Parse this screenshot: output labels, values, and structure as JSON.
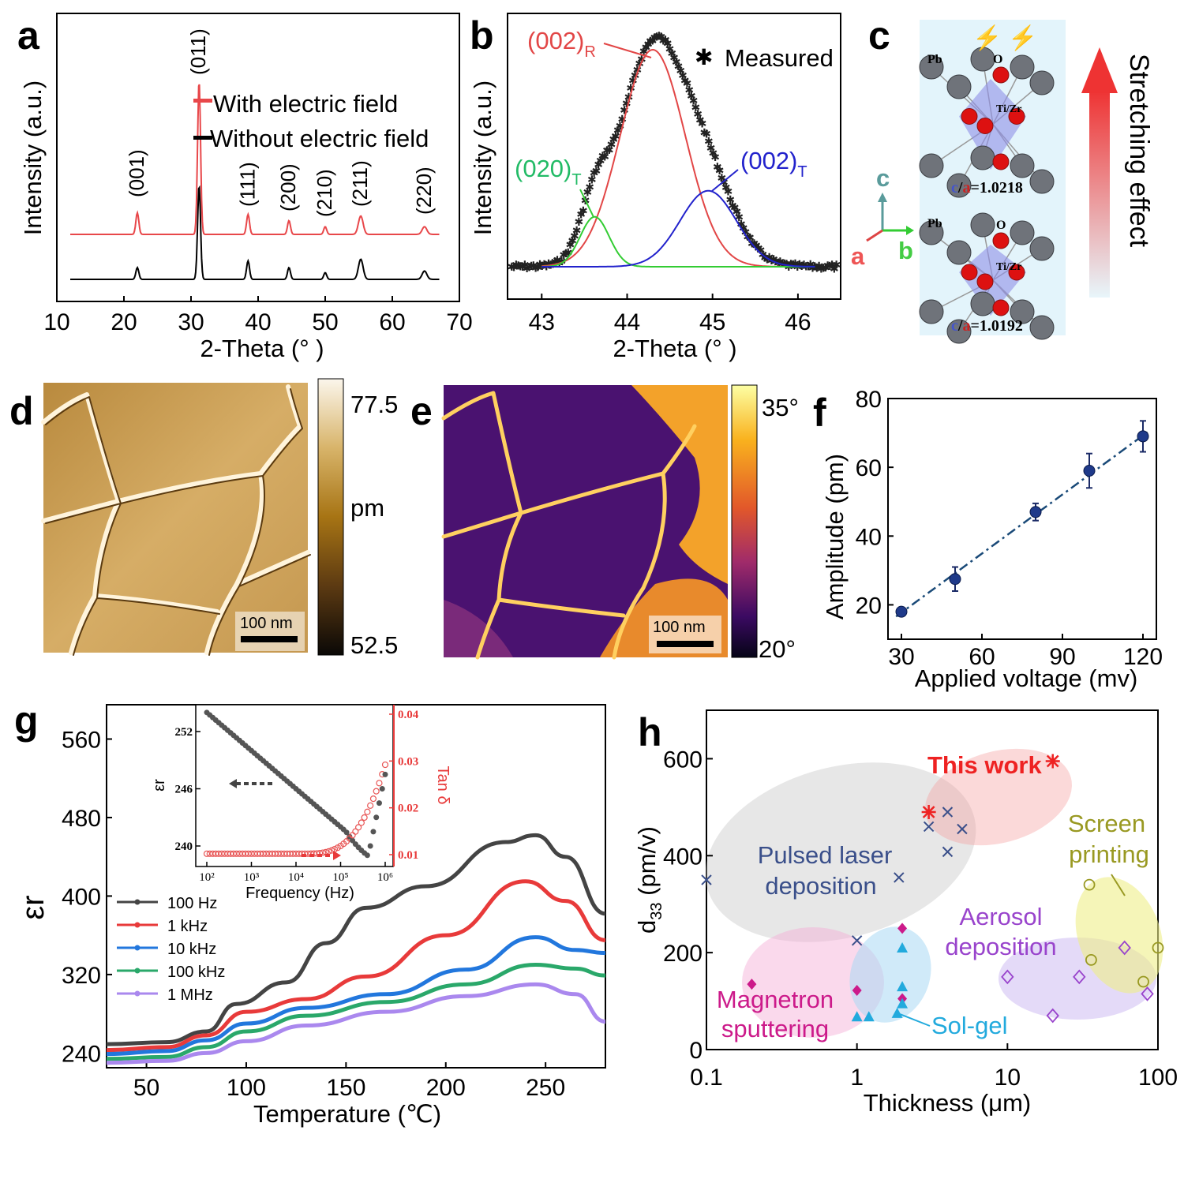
{
  "chart_data": [
    {
      "panel": "a",
      "type": "line",
      "xlabel": "2-Theta (°  )",
      "ylabel": "Intensity (a.u.)",
      "xlim": [
        10,
        70
      ],
      "xticks": [
        "10",
        "20",
        "30",
        "40",
        "50",
        "60",
        "70"
      ],
      "peaks": [
        {
          "label": "(001)",
          "x": 22.0,
          "h_with": 0.14,
          "h_without": 0.07
        },
        {
          "label": "(011)",
          "x": 31.2,
          "h_with": 1.0,
          "h_without": 0.56
        },
        {
          "label": "(111)",
          "x": 38.5,
          "h_with": 0.13,
          "h_without": 0.11
        },
        {
          "label": "(200)",
          "x": 44.6,
          "h_with": 0.09,
          "h_without": 0.07
        },
        {
          "label": "(210)",
          "x": 50.0,
          "h_with": 0.05,
          "h_without": 0.04
        },
        {
          "label": "(211)",
          "x": 55.3,
          "h_with": 0.12,
          "h_without": 0.12
        },
        {
          "label": "(220)",
          "x": 64.8,
          "h_with": 0.05,
          "h_without": 0.05
        }
      ],
      "series": [
        {
          "name": "With electric field",
          "color": "#e8474a"
        },
        {
          "name": "Without electric field",
          "color": "#000000"
        }
      ]
    },
    {
      "panel": "b",
      "type": "line",
      "xlabel": "2-Theta (°  )",
      "ylabel": "Intensity (a.u.)",
      "xlim": [
        42.6,
        46.5
      ],
      "xticks": [
        "43",
        "44",
        "45",
        "46"
      ],
      "legend": "Measured",
      "components": [
        {
          "name": "(002)",
          "sub": "R",
          "center": 44.3,
          "sigma": 0.38,
          "amp": 1.0,
          "color": "#e24646"
        },
        {
          "name": "(020)",
          "sub": "T",
          "center": 43.62,
          "sigma": 0.17,
          "amp": 0.23,
          "color": "#33cc33"
        },
        {
          "name": "(002)",
          "sub": "T",
          "center": 44.95,
          "sigma": 0.33,
          "amp": 0.35,
          "color": "#2222cc"
        }
      ]
    },
    {
      "panel": "f",
      "type": "scatter",
      "xlabel": "Applied voltage (mv)",
      "ylabel": "Amplitude (pm)",
      "xlim": [
        25,
        125
      ],
      "ylim": [
        10,
        80
      ],
      "xticks": [
        "30",
        "60",
        "90",
        "120"
      ],
      "yticks": [
        "20",
        "40",
        "60",
        "80"
      ],
      "x": [
        30,
        50,
        80,
        100,
        120
      ],
      "y": [
        18,
        27.5,
        47,
        59,
        69
      ],
      "err": [
        1,
        3.5,
        2.5,
        5,
        4.5
      ]
    },
    {
      "panel": "g",
      "type": "line",
      "xlabel": "Temperature (℃)",
      "ylabel": "εr",
      "xlim": [
        30,
        280
      ],
      "ylim": [
        225,
        595
      ],
      "xticks": [
        "50",
        "100",
        "150",
        "200",
        "250"
      ],
      "yticks": [
        "240",
        "320",
        "400",
        "480",
        "560"
      ],
      "series": [
        {
          "name": "100 Hz",
          "color": "#444444",
          "points": [
            [
              30,
              249
            ],
            [
              60,
              251
            ],
            [
              80,
              262
            ],
            [
              95,
              290
            ],
            [
              120,
              312
            ],
            [
              140,
              352
            ],
            [
              160,
              388
            ],
            [
              190,
              410
            ],
            [
              230,
              455
            ],
            [
              245,
              462
            ],
            [
              260,
              440
            ],
            [
              280,
              382
            ]
          ]
        },
        {
          "name": "1 kHz",
          "color": "#e83a3a",
          "points": [
            [
              30,
              243
            ],
            [
              60,
              246
            ],
            [
              80,
              258
            ],
            [
              100,
              282
            ],
            [
              130,
              295
            ],
            [
              160,
              318
            ],
            [
              200,
              360
            ],
            [
              240,
              415
            ],
            [
              260,
              395
            ],
            [
              280,
              355
            ]
          ]
        },
        {
          "name": "10 kHz",
          "color": "#2277dd",
          "points": [
            [
              30,
              239
            ],
            [
              60,
              242
            ],
            [
              80,
              253
            ],
            [
              100,
              270
            ],
            [
              130,
              286
            ],
            [
              170,
              300
            ],
            [
              210,
              325
            ],
            [
              245,
              358
            ],
            [
              265,
              345
            ],
            [
              280,
              342
            ]
          ]
        },
        {
          "name": "100 kHz",
          "color": "#2aa86a",
          "points": [
            [
              30,
              234
            ],
            [
              60,
              236
            ],
            [
              80,
              246
            ],
            [
              100,
              262
            ],
            [
              130,
              278
            ],
            [
              170,
              292
            ],
            [
              210,
              310
            ],
            [
              245,
              330
            ],
            [
              265,
              326
            ],
            [
              280,
              319
            ]
          ]
        },
        {
          "name": "1 MHz",
          "color": "#aa88ee",
          "points": [
            [
              30,
              230
            ],
            [
              60,
              232
            ],
            [
              80,
              240
            ],
            [
              100,
              252
            ],
            [
              130,
              268
            ],
            [
              170,
              282
            ],
            [
              210,
              298
            ],
            [
              245,
              310
            ],
            [
              265,
              300
            ],
            [
              280,
              272
            ]
          ]
        }
      ],
      "inset": {
        "xlabel": "Frequency (Hz)",
        "ylabel": "εr",
        "y2label": "Tan δ",
        "xticks": [
          "10²",
          "10³",
          "10⁴",
          "10⁵",
          "10⁶"
        ],
        "yticks": [
          "240",
          "246",
          "252"
        ],
        "y2ticks": [
          "0.01",
          "0.02",
          "0.03",
          "0.04"
        ]
      }
    },
    {
      "panel": "h",
      "type": "scatter",
      "xlabel": "Thickness (μm)",
      "ylabel": "d33 (pm/v)",
      "xlim": [
        0.1,
        100
      ],
      "ylim": [
        0,
        700
      ],
      "xscale": "log",
      "xticks": [
        "0.1",
        "1",
        "10",
        "100"
      ],
      "yticks": [
        "0",
        "200",
        "400",
        "600"
      ],
      "groups": [
        {
          "name": "This work",
          "color": "#ee2222",
          "marker": "asterisk",
          "points": [
            [
              3,
              490
            ],
            [
              20,
              595
            ]
          ]
        },
        {
          "name": "Pulsed laser deposition",
          "color": "#3a4f8a",
          "marker": "x",
          "points": [
            [
              0.1,
              350
            ],
            [
              1,
              225
            ],
            [
              1.9,
              355
            ],
            [
              3,
              460
            ],
            [
              4,
              490
            ],
            [
              4,
              408
            ],
            [
              5,
              455
            ]
          ]
        },
        {
          "name": "Magnetron sputtering",
          "color": "#cc1a8a",
          "marker": "diamond",
          "points": [
            [
              0.2,
              135
            ],
            [
              1,
              122
            ],
            [
              2,
              250
            ],
            [
              2,
              105
            ]
          ]
        },
        {
          "name": "Sol-gel",
          "color": "#22aadd",
          "marker": "triangle",
          "points": [
            [
              1,
              68
            ],
            [
              1.2,
              68
            ],
            [
              1.85,
              75
            ],
            [
              2,
              210
            ],
            [
              2,
              130
            ],
            [
              2,
              95
            ]
          ]
        },
        {
          "name": "Aerosol deposition",
          "color": "#9944cc",
          "marker": "diamond-open",
          "points": [
            [
              10,
              150
            ],
            [
              20,
              70
            ],
            [
              30,
              150
            ],
            [
              60,
              210
            ],
            [
              85,
              115
            ]
          ]
        },
        {
          "name": "Screen printing",
          "color": "#999922",
          "marker": "circle-open",
          "points": [
            [
              35,
              340
            ],
            [
              36,
              185
            ],
            [
              100,
              210
            ],
            [
              80,
              140
            ]
          ]
        }
      ]
    }
  ],
  "panel_labels": [
    "a",
    "b",
    "c",
    "d",
    "e",
    "f",
    "g",
    "h"
  ],
  "panel_a": {
    "peak_labels": [
      "(001)",
      "(011)",
      "(111)",
      "(200)",
      "(210)",
      "(211)",
      "(220)"
    ],
    "legend_with": "With electric field",
    "legend_without": "Without electric field"
  },
  "panel_b": {
    "legend": "Measured",
    "label_r": "(002)",
    "label_r_sub": "R",
    "label_t1": "(020)",
    "label_t1_sub": "T",
    "label_t2": "(002)",
    "label_t2_sub": "T"
  },
  "panel_c": {
    "axis_c": "c",
    "axis_a": "a",
    "axis_b": "b",
    "atom_pb": "Pb",
    "atom_o": "O",
    "atom_tizr": "Ti/Zr",
    "ratio_top_c": "c",
    "ratio_top_a": "a",
    "ratio_top_val": "=1.0218",
    "ratio_bot_c": "c",
    "ratio_bot_a": "a",
    "ratio_bot_val": "=1.0192",
    "stretch": "Stretching effect"
  },
  "panel_d": {
    "cb_max": "77.5",
    "cb_min": "52.5",
    "cb_unit": "pm",
    "scale": "100 nm"
  },
  "panel_e": {
    "cb_max": "35°",
    "cb_min": "20°",
    "scale": "100 nm"
  },
  "panel_h": {
    "ylabel_main": "d",
    "ylabel_sub": "33",
    "ylabel_unit": " (pm/v)",
    "g_this": "This work",
    "g_pld1": "Pulsed laser",
    "g_pld2": "deposition",
    "g_mag1": "Magnetron",
    "g_mag2": "sputtering",
    "g_sol": "Sol-gel",
    "g_aer1": "Aerosol",
    "g_aer2": "deposition",
    "g_scr1": "Screen",
    "g_scr2": "printing"
  }
}
